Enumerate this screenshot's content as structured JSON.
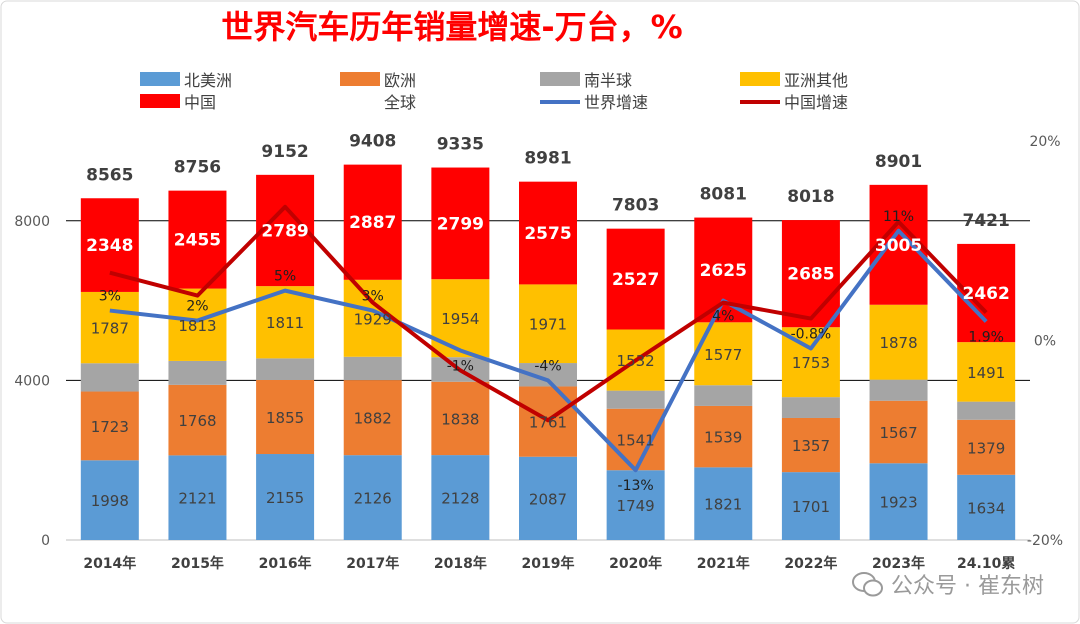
{
  "chart_data": {
    "type": "bar",
    "title": "世界汽车历年销量增速-万台，%",
    "categories": [
      "2014年",
      "2015年",
      "2016年",
      "2017年",
      "2018年",
      "2019年",
      "2020年",
      "2021年",
      "2022年",
      "2023年",
      "24.10累"
    ],
    "stacked": true,
    "ylim": [
      0,
      10000
    ],
    "yticks": [
      "0",
      "4000",
      "8000"
    ],
    "y2lim": [
      -20,
      20
    ],
    "y2ticks": [
      "-20%",
      "0%",
      "20%"
    ],
    "legend_placement": "top",
    "series": [
      {
        "name": "北美洲",
        "color": "#5b9bd5",
        "values": [
          1998,
          2121,
          2155,
          2126,
          2128,
          2087,
          1749,
          1821,
          1701,
          1923,
          1634
        ]
      },
      {
        "name": "欧洲",
        "color": "#ed7d31",
        "values": [
          1723,
          1768,
          1855,
          1882,
          1838,
          1761,
          1541,
          1539,
          1357,
          1567,
          1379
        ]
      },
      {
        "name": "南半球",
        "color": "#a5a5a5",
        "values": [
          709,
          599,
          542,
          584,
          616,
          587,
          454,
          519,
          522,
          528,
          455
        ]
      },
      {
        "name": "亚洲其他",
        "color": "#ffc000",
        "values": [
          1787,
          1813,
          1811,
          1929,
          1954,
          1971,
          1532,
          1577,
          1753,
          1878,
          1491
        ]
      },
      {
        "name": "中国",
        "color": "#ff0000",
        "values": [
          2348,
          2455,
          2789,
          2887,
          2799,
          2575,
          2527,
          2625,
          2685,
          3005,
          2462
        ]
      }
    ],
    "totals": {
      "name": "全球",
      "values": [
        8565,
        8756,
        9152,
        9408,
        9335,
        8981,
        7803,
        8081,
        8018,
        8901,
        7421
      ]
    },
    "lines": [
      {
        "name": "世界增速",
        "color": "#4472c4",
        "axis": "right",
        "values": [
          3,
          2,
          5,
          3,
          -1,
          -4,
          -13,
          4,
          -0.8,
          11,
          1.9
        ],
        "labels": [
          "3%",
          "2%",
          "5%",
          "3%",
          "-1%",
          "-4%",
          "-13%",
          "4%",
          "-0.8%",
          "11%",
          "1.9%"
        ]
      },
      {
        "name": "中国增速",
        "color": "#c00000",
        "axis": "right",
        "values": [
          6.8,
          4.5,
          13.4,
          3.8,
          -3,
          -8,
          -2,
          3.8,
          2.2,
          11.9,
          2.8
        ]
      }
    ]
  },
  "watermark": "公众号 · 崔东树"
}
